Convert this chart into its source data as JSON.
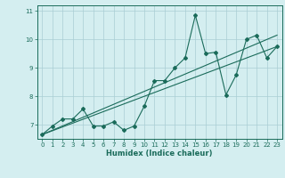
{
  "xlabel": "Humidex (Indice chaleur)",
  "ylabel": "",
  "bg_color": "#d4eef0",
  "line_color": "#1a6b5a",
  "grid_color": "#aacdd4",
  "xlim": [
    -0.5,
    23.5
  ],
  "ylim": [
    6.5,
    11.2
  ],
  "yticks": [
    7,
    8,
    9,
    10,
    11
  ],
  "xticks": [
    0,
    1,
    2,
    3,
    4,
    5,
    6,
    7,
    8,
    9,
    10,
    11,
    12,
    13,
    14,
    15,
    16,
    17,
    18,
    19,
    20,
    21,
    22,
    23
  ],
  "data_line": {
    "x": [
      0,
      1,
      2,
      3,
      4,
      5,
      6,
      7,
      8,
      9,
      10,
      11,
      12,
      13,
      14,
      15,
      16,
      17,
      18,
      19,
      20,
      21,
      22,
      23
    ],
    "y": [
      6.65,
      6.95,
      7.2,
      7.2,
      7.55,
      6.95,
      6.95,
      7.1,
      6.8,
      6.95,
      7.65,
      8.55,
      8.55,
      9.0,
      9.35,
      10.85,
      9.5,
      9.55,
      8.05,
      8.75,
      10.0,
      10.15,
      9.35,
      9.75
    ]
  },
  "trend_line1": {
    "x": [
      0,
      23
    ],
    "y": [
      6.65,
      9.75
    ]
  },
  "trend_line2": {
    "x": [
      0,
      23
    ],
    "y": [
      6.65,
      10.15
    ]
  }
}
